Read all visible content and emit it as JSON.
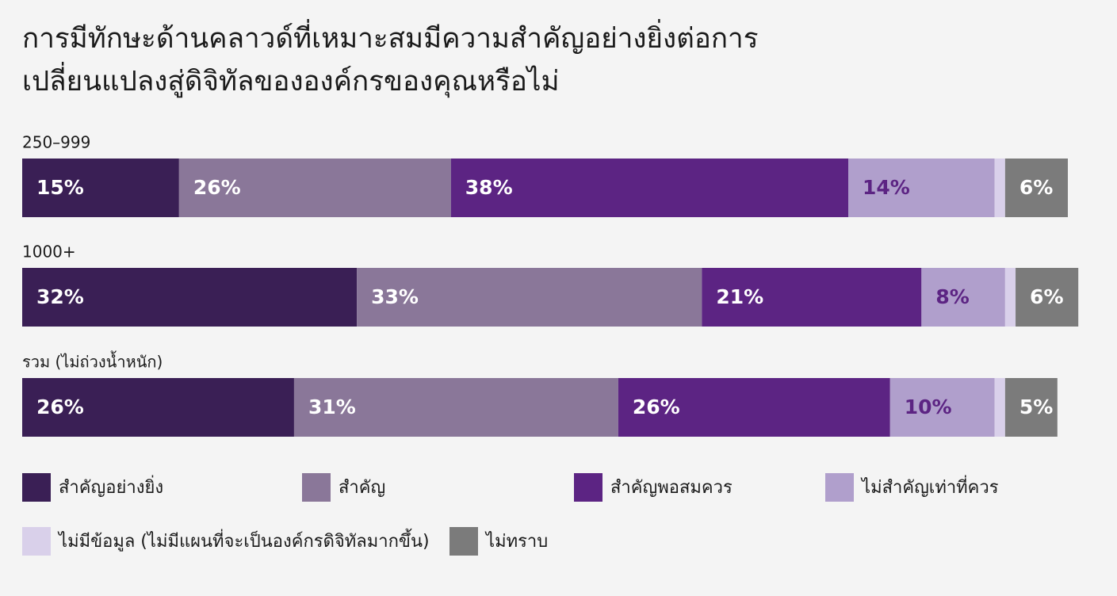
{
  "chart_data": {
    "type": "stacked_bar",
    "title": "การมีทักษะด้านคลาวด์ที่เหมาะสมมีความสำคัญอย่างยิ่งต่อการ\nเปลี่ยนแปลงสู่ดิจิทัลขององค์กรของคุณหรือไม่",
    "categories": [
      "250–999",
      "1000+",
      "รวม (ไม่ถ่วงน้ำหนัก)"
    ],
    "xlim": [
      0,
      100
    ],
    "series": [
      {
        "name": "สำคัญอย่างยิ่ง",
        "color": "#3a1f55",
        "label_color": "#ffffff",
        "values": [
          15,
          32,
          26
        ],
        "value_labels": [
          "15%",
          "32%",
          "26%"
        ]
      },
      {
        "name": "สำคัญ",
        "color": "#8a7799",
        "label_color": "#ffffff",
        "values": [
          26,
          33,
          31
        ],
        "value_labels": [
          "26%",
          "33%",
          "31%"
        ]
      },
      {
        "name": "สำคัญพอสมควร",
        "color": "#5c2483",
        "label_color": "#ffffff",
        "values": [
          38,
          21,
          26
        ],
        "value_labels": [
          "38%",
          "21%",
          "26%"
        ]
      },
      {
        "name": "ไม่สำคัญเท่าที่ควร",
        "color": "#b09fcc",
        "label_color": "#5c2483",
        "values": [
          14,
          8,
          10
        ],
        "value_labels": [
          "14%",
          "8%",
          "10%"
        ]
      },
      {
        "name": "ไม่มีข้อมูล (ไม่มีแผนที่จะเป็นองค์กรดิจิทัลมากขึ้น)",
        "color": "#d9d0ea",
        "label_color": "#5c2483",
        "values": [
          1,
          1,
          1
        ]
      },
      {
        "name": "ไม่ทราบ",
        "color": "#7b7b7b",
        "label_color": "#ffffff",
        "values": [
          6,
          6,
          5
        ],
        "value_labels": [
          "6%",
          "6%",
          "5%"
        ]
      }
    ]
  }
}
